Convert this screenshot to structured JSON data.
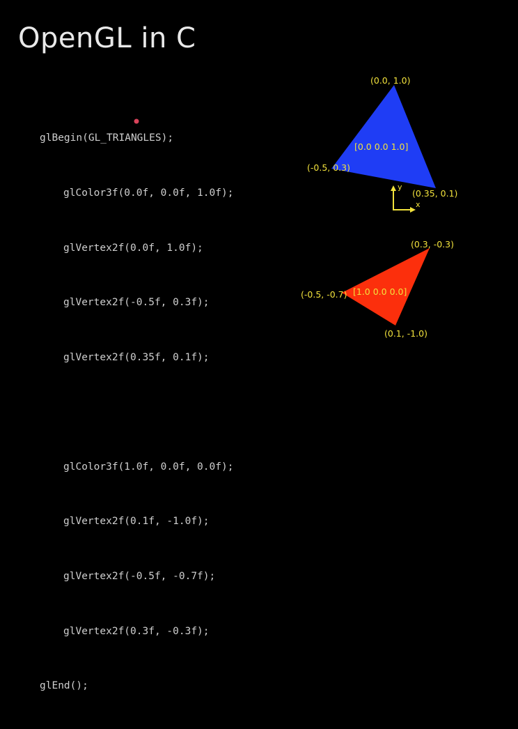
{
  "slide": {
    "title": "OpenGL in C"
  },
  "code": {
    "begin": "glBegin(GL_TRIANGLES);",
    "blue_color": "glColor3f(0.0f, 0.0f, 1.0f);",
    "blue_v1": "glVertex2f(0.0f, 1.0f);",
    "blue_v2": "glVertex2f(-0.5f, 0.3f);",
    "blue_v3": "glVertex2f(0.35f, 0.1f);",
    "red_color": "glColor3f(1.0f, 0.0f, 0.0f);",
    "red_v1": "glVertex2f(0.1f, -1.0f);",
    "red_v2": "glVertex2f(-0.5f, -0.7f);",
    "red_v3": "glVertex2f(0.3f, -0.3f);",
    "end": "glEnd();"
  },
  "diagram": {
    "blue_triangle": {
      "color": "#1f3df5",
      "color_label": "[0.0 0.0 1.0]",
      "vertex_top": "(0.0, 1.0)",
      "vertex_left": "(-0.5, 0.3)",
      "vertex_right": "(0.35, 0.1)"
    },
    "red_triangle": {
      "color": "#fc2f0c",
      "color_label": "[1.0 0.0 0.0]",
      "vertex_top": "(0.3, -0.3)",
      "vertex_left": "(-0.5, -0.7)",
      "vertex_bottom": "(0.1, -1.0)"
    },
    "axes": {
      "x_label": "x",
      "y_label": "y",
      "color": "#f2e23c"
    }
  }
}
